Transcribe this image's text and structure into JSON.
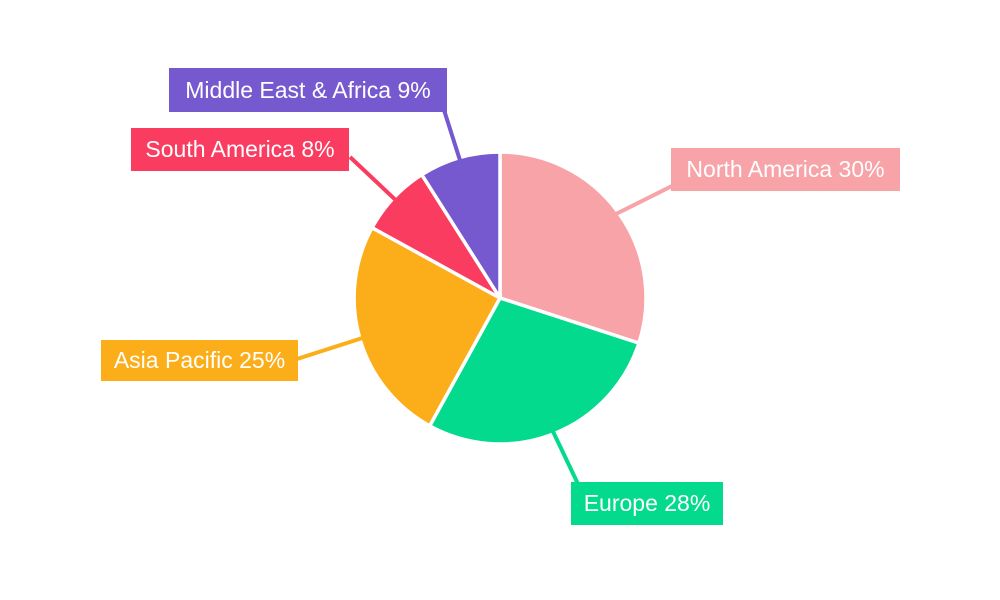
{
  "chart_data": {
    "type": "pie",
    "background": "#ffffff",
    "direction": "clockwise",
    "start_angle_deg": 0,
    "gap_color": "#ffffff",
    "label_text_color": "#ffffff",
    "slices": [
      {
        "label": "North America",
        "value": 30,
        "display_label": "North America 30%",
        "color": "#F8A3A8"
      },
      {
        "label": "Europe",
        "value": 28,
        "display_label": "Europe 28%",
        "color": "#04DA8D"
      },
      {
        "label": "Asia Pacific",
        "value": 25,
        "display_label": "Asia Pacific 25%",
        "color": "#FBAD1A"
      },
      {
        "label": "South America",
        "value": 8,
        "display_label": "South America 8%",
        "color": "#FA3C60"
      },
      {
        "label": "Middle East & Africa",
        "value": 9,
        "display_label": "Middle East & Africa 9%",
        "color": "#7659CF"
      }
    ]
  }
}
